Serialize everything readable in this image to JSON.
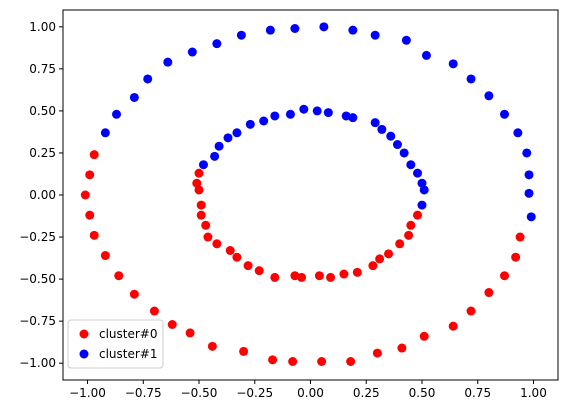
{
  "chart_data": {
    "type": "scatter",
    "title": "",
    "xlabel": "",
    "ylabel": "",
    "xlim": [
      -1.11,
      1.11
    ],
    "ylim": [
      -1.1,
      1.1
    ],
    "xticks": [
      -1.0,
      -0.75,
      -0.5,
      -0.25,
      0.0,
      0.25,
      0.5,
      0.75,
      1.0
    ],
    "xtick_labels": [
      "−1.00",
      "−0.75",
      "−0.50",
      "−0.25",
      "0.00",
      "0.25",
      "0.50",
      "0.75",
      "1.00"
    ],
    "yticks": [
      -1.0,
      -0.75,
      -0.5,
      -0.25,
      0.0,
      0.25,
      0.5,
      0.75,
      1.0
    ],
    "ytick_labels": [
      "−1.00",
      "−0.75",
      "−0.50",
      "−0.25",
      "0.00",
      "0.25",
      "0.50",
      "0.75",
      "1.00"
    ],
    "grid": false,
    "legend_position": "lower-left",
    "series": [
      {
        "name": "cluster#0",
        "color": "#ff0000",
        "points": [
          [
            -0.97,
            0.24
          ],
          [
            -0.99,
            0.12
          ],
          [
            -1.01,
            0.0
          ],
          [
            -0.99,
            -0.12
          ],
          [
            -0.97,
            -0.24
          ],
          [
            -0.92,
            -0.36
          ],
          [
            -0.86,
            -0.48
          ],
          [
            -0.79,
            -0.59
          ],
          [
            -0.7,
            -0.69
          ],
          [
            -0.62,
            -0.77
          ],
          [
            -0.54,
            -0.82
          ],
          [
            -0.44,
            -0.9
          ],
          [
            -0.3,
            -0.93
          ],
          [
            -0.17,
            -0.98
          ],
          [
            -0.08,
            -0.99
          ],
          [
            0.05,
            -0.99
          ],
          [
            0.18,
            -0.99
          ],
          [
            0.3,
            -0.94
          ],
          [
            0.41,
            -0.91
          ],
          [
            0.51,
            -0.84
          ],
          [
            0.64,
            -0.78
          ],
          [
            0.72,
            -0.69
          ],
          [
            0.8,
            -0.58
          ],
          [
            0.87,
            -0.48
          ],
          [
            0.92,
            -0.37
          ],
          [
            0.94,
            -0.25
          ],
          [
            -0.51,
            0.07
          ],
          [
            -0.5,
            0.13
          ],
          [
            -0.5,
            0.03
          ],
          [
            -0.49,
            -0.06
          ],
          [
            -0.49,
            -0.12
          ],
          [
            -0.47,
            -0.18
          ],
          [
            -0.46,
            -0.25
          ],
          [
            -0.42,
            -0.29
          ],
          [
            -0.36,
            -0.33
          ],
          [
            -0.33,
            -0.37
          ],
          [
            -0.28,
            -0.42
          ],
          [
            -0.23,
            -0.45
          ],
          [
            -0.16,
            -0.49
          ],
          [
            -0.07,
            -0.48
          ],
          [
            -0.04,
            -0.49
          ],
          [
            0.04,
            -0.48
          ],
          [
            0.09,
            -0.49
          ],
          [
            0.15,
            -0.47
          ],
          [
            0.21,
            -0.46
          ],
          [
            0.28,
            -0.42
          ],
          [
            0.31,
            -0.38
          ],
          [
            0.35,
            -0.35
          ],
          [
            0.4,
            -0.29
          ],
          [
            0.44,
            -0.24
          ],
          [
            0.45,
            -0.18
          ],
          [
            0.48,
            -0.12
          ]
        ]
      },
      {
        "name": "cluster#1",
        "color": "#0000ff",
        "points": [
          [
            -0.92,
            0.37
          ],
          [
            -0.87,
            0.48
          ],
          [
            -0.79,
            0.58
          ],
          [
            -0.73,
            0.69
          ],
          [
            -0.64,
            0.79
          ],
          [
            -0.53,
            0.85
          ],
          [
            -0.42,
            0.9
          ],
          [
            -0.31,
            0.95
          ],
          [
            -0.18,
            0.98
          ],
          [
            -0.07,
            0.99
          ],
          [
            0.06,
            1.0
          ],
          [
            0.19,
            0.98
          ],
          [
            0.29,
            0.95
          ],
          [
            0.43,
            0.92
          ],
          [
            0.52,
            0.83
          ],
          [
            0.64,
            0.78
          ],
          [
            0.72,
            0.69
          ],
          [
            0.8,
            0.59
          ],
          [
            0.87,
            0.48
          ],
          [
            0.93,
            0.37
          ],
          [
            0.97,
            0.25
          ],
          [
            0.98,
            0.12
          ],
          [
            0.98,
            0.01
          ],
          [
            0.99,
            -0.13
          ],
          [
            -0.48,
            0.18
          ],
          [
            -0.43,
            0.23
          ],
          [
            -0.41,
            0.29
          ],
          [
            -0.37,
            0.34
          ],
          [
            -0.33,
            0.37
          ],
          [
            -0.27,
            0.42
          ],
          [
            -0.21,
            0.44
          ],
          [
            -0.16,
            0.47
          ],
          [
            -0.09,
            0.48
          ],
          [
            -0.03,
            0.51
          ],
          [
            0.03,
            0.5
          ],
          [
            0.08,
            0.49
          ],
          [
            0.16,
            0.47
          ],
          [
            0.19,
            0.46
          ],
          [
            0.29,
            0.43
          ],
          [
            0.32,
            0.39
          ],
          [
            0.36,
            0.35
          ],
          [
            0.39,
            0.3
          ],
          [
            0.42,
            0.25
          ],
          [
            0.45,
            0.18
          ],
          [
            0.48,
            0.13
          ],
          [
            0.5,
            0.07
          ],
          [
            0.51,
            0.03
          ],
          [
            0.5,
            -0.06
          ]
        ]
      }
    ]
  }
}
